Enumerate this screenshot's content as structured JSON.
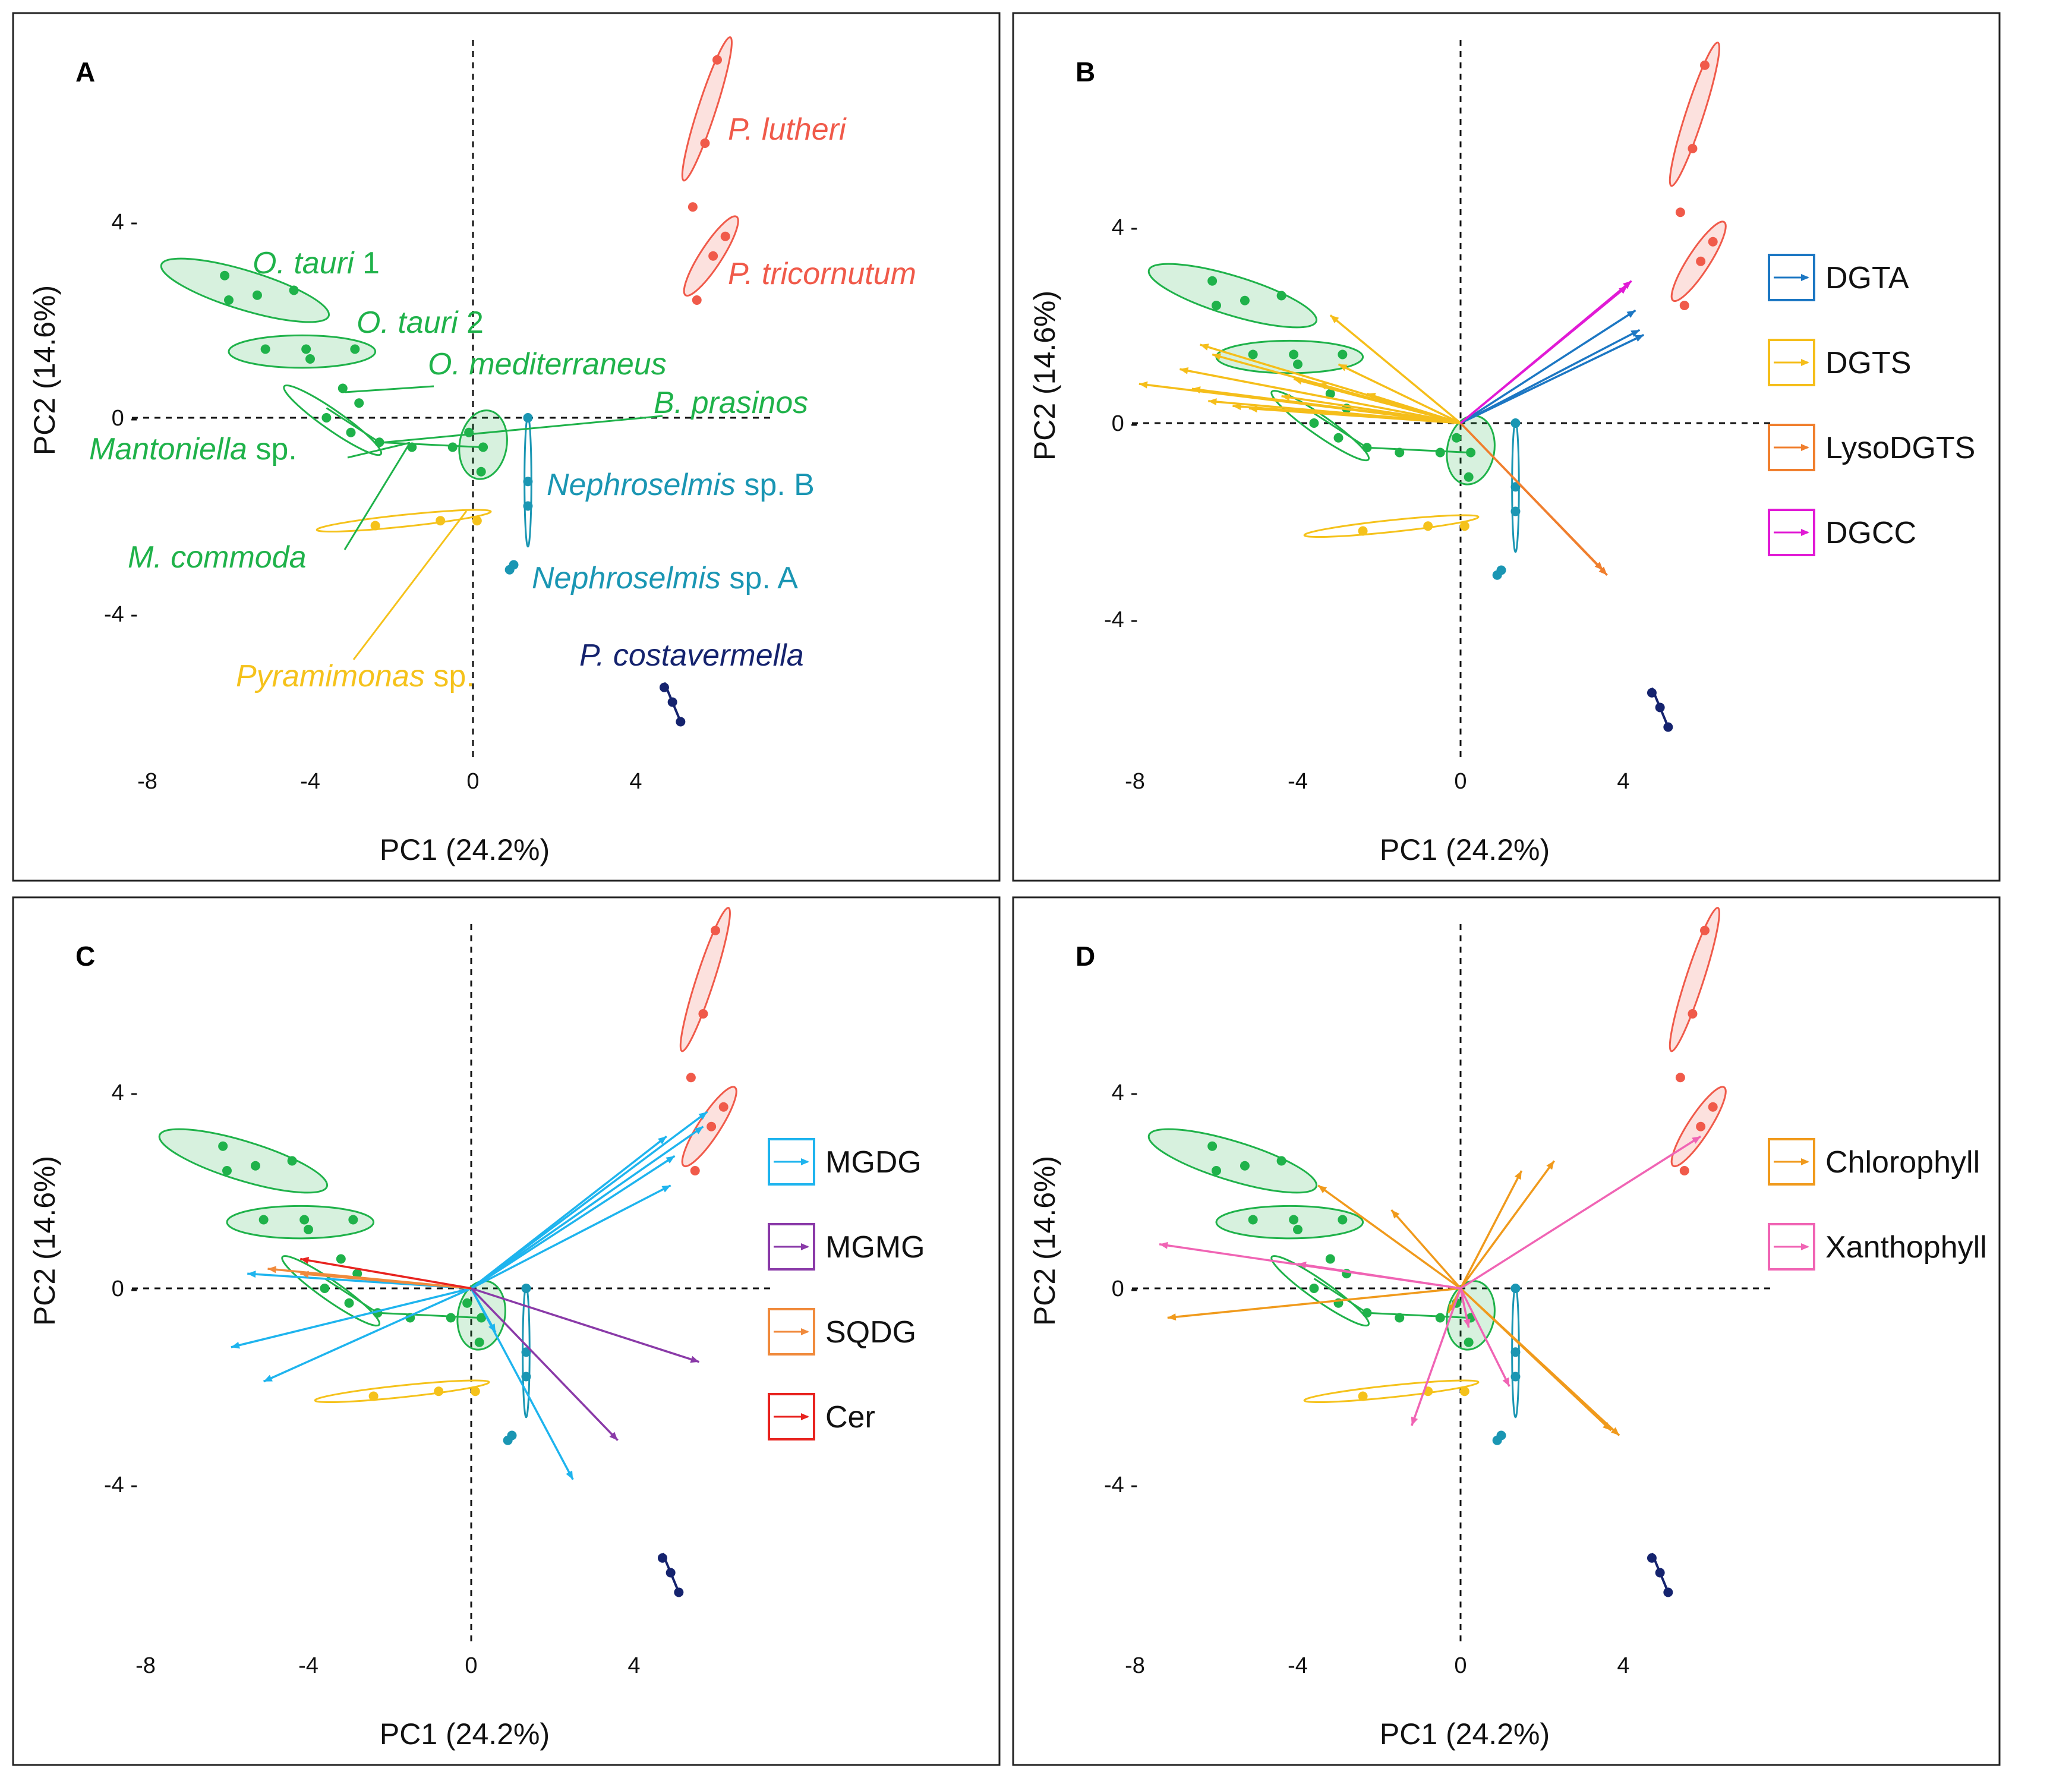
{
  "shared": {
    "xlabel": "PC1 (24.2%)",
    "ylabel": "PC2 (14.6%)",
    "xticks": [
      "-8",
      "-4",
      "0",
      "4"
    ],
    "yticks": [
      "4",
      "0",
      "-4"
    ],
    "xlim": [
      -8.4,
      7.4
    ],
    "ylim": [
      -7.5,
      8.2
    ]
  },
  "colors": {
    "green": "#1fb24a",
    "red": "#f05a4a",
    "teal": "#1a96b3",
    "yellow": "#f5c21b",
    "navy": "#15236e",
    "DGTA": "#1c77c3",
    "DGTS": "#f5be1a",
    "LysoDGTS": "#f07f2e",
    "DGCC": "#e11ad5",
    "MGDG": "#1eb4ee",
    "MGMG": "#8a3aa8",
    "SQDG": "#f08a3c",
    "Cer": "#e8231f",
    "Chlorophyll": "#f09a1c",
    "Xanthophyll": "#f064b4"
  },
  "chart_data": [
    {
      "type": "scatter",
      "panel": "A",
      "title": "A",
      "xlabel": "PC1 (24.2%)",
      "ylabel": "PC2 (14.6%)",
      "labels": [
        {
          "text": "P. lutheri",
          "italic": "P. lutheri",
          "rest": "",
          "color": "red"
        },
        {
          "text": "P. tricornutum",
          "italic": "P. tricornutum",
          "rest": "",
          "color": "red"
        },
        {
          "text": "O. tauri 1",
          "italic": "O. tauri",
          "rest": " 1",
          "color": "green"
        },
        {
          "text": "O. tauri 2",
          "italic": "O. tauri",
          "rest": " 2",
          "color": "green"
        },
        {
          "text": "O. mediterraneus",
          "italic": "O. mediterraneus",
          "rest": "",
          "color": "green"
        },
        {
          "text": "B. prasinos",
          "italic": "B. prasinos",
          "rest": "",
          "color": "green"
        },
        {
          "text": "Mantoniella sp.",
          "italic": "Mantoniella",
          "rest": " sp.",
          "color": "green"
        },
        {
          "text": "Nephroselmis sp. B",
          "italic": "Nephroselmis",
          "rest": " sp. B",
          "color": "teal"
        },
        {
          "text": "M. commoda",
          "italic": "M. commoda",
          "rest": "",
          "color": "green"
        },
        {
          "text": "Nephroselmis sp. A",
          "italic": "Nephroselmis",
          "rest": " sp. A",
          "color": "teal"
        },
        {
          "text": "P. costavermella",
          "italic": "P. costavermella",
          "rest": "",
          "color": "navy"
        },
        {
          "text": "Pyramimonas sp.",
          "italic": "Pyramimonas",
          "rest": " sp.",
          "color": "yellow"
        }
      ]
    },
    {
      "type": "biplot",
      "panel": "B",
      "title": "B",
      "legend": [
        "DGTA",
        "DGTS",
        "LysoDGTS",
        "DGCC"
      ],
      "arrows": [
        {
          "group": "DGTA",
          "x": 4.3,
          "y": 2.3
        },
        {
          "group": "DGTA",
          "x": 4.4,
          "y": 1.9
        },
        {
          "group": "DGTA",
          "x": 4.5,
          "y": 1.8
        },
        {
          "group": "DGTS",
          "x": -3.2,
          "y": 2.2
        },
        {
          "group": "DGTS",
          "x": -6.4,
          "y": 1.6
        },
        {
          "group": "DGTS",
          "x": -6.1,
          "y": 1.4
        },
        {
          "group": "DGTS",
          "x": -7.9,
          "y": 0.8
        },
        {
          "group": "DGTS",
          "x": -6.9,
          "y": 1.1
        },
        {
          "group": "DGTS",
          "x": -6.6,
          "y": 0.7
        },
        {
          "group": "DGTS",
          "x": -6.2,
          "y": 0.45
        },
        {
          "group": "DGTS",
          "x": -5.6,
          "y": 0.35
        },
        {
          "group": "DGTS",
          "x": -5.2,
          "y": 0.3
        },
        {
          "group": "DGTS",
          "x": -4.4,
          "y": 0.55
        },
        {
          "group": "DGTS",
          "x": -4.1,
          "y": 0.9
        },
        {
          "group": "DGTS",
          "x": -3.5,
          "y": 0.8
        },
        {
          "group": "DGTS",
          "x": -3.0,
          "y": 1.2
        },
        {
          "group": "DGTS",
          "x": -2.3,
          "y": 0.6
        },
        {
          "group": "LysoDGTS",
          "x": 3.6,
          "y": -3.1
        },
        {
          "group": "LysoDGTS",
          "x": 3.5,
          "y": -3.0
        },
        {
          "group": "DGCC",
          "x": 4.2,
          "y": 2.9
        },
        {
          "group": "DGCC",
          "x": 4.1,
          "y": 2.8
        }
      ]
    },
    {
      "type": "biplot",
      "panel": "C",
      "title": "C",
      "legend": [
        "MGDG",
        "MGMG",
        "SQDG",
        "Cer"
      ],
      "arrows": [
        {
          "group": "MGDG",
          "x": 5.8,
          "y": 3.6
        },
        {
          "group": "MGDG",
          "x": 5.7,
          "y": 3.3
        },
        {
          "group": "MGDG",
          "x": 4.8,
          "y": 3.1
        },
        {
          "group": "MGDG",
          "x": 5.0,
          "y": 2.7
        },
        {
          "group": "MGDG",
          "x": 4.9,
          "y": 2.1
        },
        {
          "group": "MGDG",
          "x": -5.5,
          "y": 0.3
        },
        {
          "group": "MGDG",
          "x": -5.9,
          "y": -1.2
        },
        {
          "group": "MGDG",
          "x": -5.1,
          "y": -1.9
        },
        {
          "group": "MGDG",
          "x": 2.5,
          "y": -3.9
        },
        {
          "group": "MGDG",
          "x": 0.6,
          "y": -0.9
        },
        {
          "group": "MGMG",
          "x": 5.6,
          "y": -1.5
        },
        {
          "group": "MGMG",
          "x": 3.6,
          "y": -3.1
        },
        {
          "group": "SQDG",
          "x": -5.0,
          "y": 0.4
        },
        {
          "group": "SQDG",
          "x": -4.2,
          "y": 0.3
        },
        {
          "group": "Cer",
          "x": -4.2,
          "y": 0.6
        }
      ]
    },
    {
      "type": "biplot",
      "panel": "D",
      "title": "D",
      "legend": [
        "Chlorophyll",
        "Xanthophyll"
      ],
      "arrows": [
        {
          "group": "Chlorophyll",
          "x": 2.3,
          "y": 2.6
        },
        {
          "group": "Chlorophyll",
          "x": 1.5,
          "y": 2.4
        },
        {
          "group": "Chlorophyll",
          "x": -1.7,
          "y": 1.6
        },
        {
          "group": "Chlorophyll",
          "x": -3.5,
          "y": 2.1
        },
        {
          "group": "Chlorophyll",
          "x": -7.2,
          "y": -0.6
        },
        {
          "group": "Chlorophyll",
          "x": 3.9,
          "y": -3.0
        },
        {
          "group": "Chlorophyll",
          "x": 3.7,
          "y": -2.9
        },
        {
          "group": "Chlorophyll",
          "x": -0.3,
          "y": -0.5
        },
        {
          "group": "Xanthophyll",
          "x": 5.9,
          "y": 3.1
        },
        {
          "group": "Xanthophyll",
          "x": -7.4,
          "y": 0.9
        },
        {
          "group": "Xanthophyll",
          "x": -1.2,
          "y": -2.8
        },
        {
          "group": "Xanthophyll",
          "x": 1.2,
          "y": -2.0
        },
        {
          "group": "Xanthophyll",
          "x": 0.2,
          "y": -0.8
        },
        {
          "group": "Xanthophyll",
          "x": -4.0,
          "y": 0.5
        }
      ]
    }
  ],
  "scores": {
    "ellipses": [
      {
        "group": "red",
        "cx": 5.75,
        "cy": 6.3,
        "rx": 1.85,
        "ry": 0.18,
        "angle": 72,
        "fill": true
      },
      {
        "group": "red",
        "cx": 5.85,
        "cy": 3.3,
        "rx": 1.15,
        "ry": 0.22,
        "angle": 57,
        "fill": true
      },
      {
        "group": "green",
        "cx": -5.6,
        "cy": 2.6,
        "rx": 2.15,
        "ry": 0.4,
        "angle": -17,
        "fill": true
      },
      {
        "group": "green",
        "cx": -4.2,
        "cy": 1.35,
        "rx": 1.8,
        "ry": 0.33,
        "angle": 0,
        "fill": true
      },
      {
        "group": "green",
        "cx": -3.45,
        "cy": -0.05,
        "rx": 1.45,
        "ry": 0.2,
        "angle": -35,
        "fill": false
      },
      {
        "group": "green",
        "cx": 0.25,
        "cy": -0.55,
        "rx": 0.85,
        "ry": 0.48,
        "angle": 80,
        "fill": true
      },
      {
        "group": "teal",
        "cx": 1.35,
        "cy": -1.3,
        "rx": 1.6,
        "ry": 0.07,
        "angle": 90,
        "fill": false
      },
      {
        "group": "yellow",
        "cx": -1.7,
        "cy": -2.1,
        "rx": 2.15,
        "ry": 0.12,
        "angle": 6,
        "fill": false
      }
    ],
    "points": [
      {
        "group": "green",
        "x": -6.1,
        "y": 2.9
      },
      {
        "group": "green",
        "x": -6.0,
        "y": 2.4
      },
      {
        "group": "green",
        "x": -5.3,
        "y": 2.5
      },
      {
        "group": "green",
        "x": -4.4,
        "y": 2.6
      },
      {
        "group": "green",
        "x": -5.1,
        "y": 1.4
      },
      {
        "group": "green",
        "x": -4.1,
        "y": 1.4
      },
      {
        "group": "green",
        "x": -2.9,
        "y": 1.4
      },
      {
        "group": "green",
        "x": -4.0,
        "y": 1.2
      },
      {
        "group": "green",
        "x": -3.2,
        "y": 0.6
      },
      {
        "group": "green",
        "x": -2.8,
        "y": 0.3
      },
      {
        "group": "green",
        "x": -3.6,
        "y": 0.0
      },
      {
        "group": "green",
        "x": -3.0,
        "y": -0.3
      },
      {
        "group": "green",
        "x": -2.3,
        "y": -0.5
      },
      {
        "group": "green",
        "x": -1.5,
        "y": -0.6
      },
      {
        "group": "green",
        "x": -0.5,
        "y": -0.6
      },
      {
        "group": "green",
        "x": 0.25,
        "y": -0.6
      },
      {
        "group": "green",
        "x": -0.1,
        "y": -0.3
      },
      {
        "group": "green",
        "x": 0.2,
        "y": -1.1
      },
      {
        "group": "red",
        "x": 6.0,
        "y": 7.3
      },
      {
        "group": "red",
        "x": 5.7,
        "y": 5.6
      },
      {
        "group": "red",
        "x": 5.4,
        "y": 4.3
      },
      {
        "group": "red",
        "x": 6.2,
        "y": 3.7
      },
      {
        "group": "red",
        "x": 5.9,
        "y": 3.3
      },
      {
        "group": "red",
        "x": 5.5,
        "y": 2.4
      },
      {
        "group": "teal",
        "x": 1.35,
        "y": 0.0
      },
      {
        "group": "teal",
        "x": 1.35,
        "y": -1.3
      },
      {
        "group": "teal",
        "x": 1.35,
        "y": -1.8
      },
      {
        "group": "yellow",
        "x": -2.4,
        "y": -2.2
      },
      {
        "group": "yellow",
        "x": -0.8,
        "y": -2.1
      },
      {
        "group": "yellow",
        "x": 0.1,
        "y": -2.1
      },
      {
        "group": "teal",
        "x": 0.9,
        "y": -3.1
      },
      {
        "group": "teal",
        "x": 1.0,
        "y": -3.0
      },
      {
        "group": "navy",
        "x": 4.7,
        "y": -5.5
      },
      {
        "group": "navy",
        "x": 4.9,
        "y": -5.8
      },
      {
        "group": "navy",
        "x": 5.1,
        "y": -6.2
      }
    ]
  }
}
